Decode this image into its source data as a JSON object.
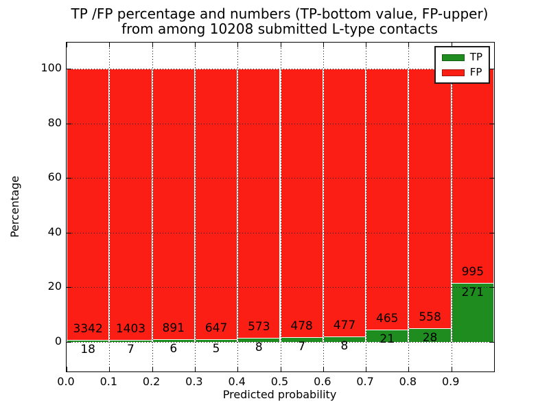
{
  "title": {
    "line1": "TP /FP percentage and numbers (TP-bottom value, FP-upper)",
    "line2": "from among 10208 submitted L-type contacts"
  },
  "axes": {
    "xlabel": "Predicted probability",
    "ylabel": "Percentage",
    "xtick_labels": [
      "0.0",
      "0.1",
      "0.2",
      "0.3",
      "0.4",
      "0.5",
      "0.6",
      "0.7",
      "0.8",
      "0.9"
    ],
    "ytick_labels": [
      "0",
      "20",
      "40",
      "60",
      "80",
      "100"
    ]
  },
  "legend": {
    "items": [
      {
        "label": "TP",
        "color": "#1e8c1e"
      },
      {
        "label": "FP",
        "color": "#fb1e14"
      }
    ]
  },
  "colors": {
    "tp_green": "#1e8c1e",
    "fp_red": "#fb1e14",
    "grid": "#000000",
    "bar_edge": "#ffffff"
  },
  "chart_data": {
    "type": "bar",
    "stacked": true,
    "normalized": "each bin stacked to 100%",
    "title": "TP /FP percentage and numbers (TP-bottom value, FP-upper) from among 10208 submitted L-type contacts",
    "xlabel": "Predicted probability",
    "ylabel": "Percentage",
    "total_submitted_contacts": 10208,
    "bin_width": 0.1,
    "bin_left_edges": [
      0.0,
      0.1,
      0.2,
      0.3,
      0.4,
      0.5,
      0.6,
      0.7,
      0.8,
      0.9
    ],
    "categories": [
      "0.0-0.1",
      "0.1-0.2",
      "0.2-0.3",
      "0.3-0.4",
      "0.4-0.5",
      "0.5-0.6",
      "0.6-0.7",
      "0.7-0.8",
      "0.8-0.9",
      "0.9-1.0"
    ],
    "series": [
      {
        "name": "TP",
        "color": "#1e8c1e",
        "counts": [
          18,
          7,
          6,
          5,
          8,
          7,
          8,
          21,
          28,
          271
        ]
      },
      {
        "name": "FP",
        "color": "#fb1e14",
        "counts": [
          3342,
          1403,
          891,
          647,
          573,
          478,
          477,
          465,
          558,
          995
        ]
      }
    ],
    "xticks": [
      0.0,
      0.1,
      0.2,
      0.3,
      0.4,
      0.5,
      0.6,
      0.7,
      0.8,
      0.9
    ],
    "yticks": [
      0,
      20,
      40,
      60,
      80,
      100
    ],
    "xlim": [
      0.0,
      1.0
    ],
    "ylim_displayed": [
      -10.8,
      109.3
    ],
    "grid": "dotted black, drawn above bars",
    "legend_entries": [
      "TP",
      "FP"
    ],
    "legend_position": "upper right"
  }
}
